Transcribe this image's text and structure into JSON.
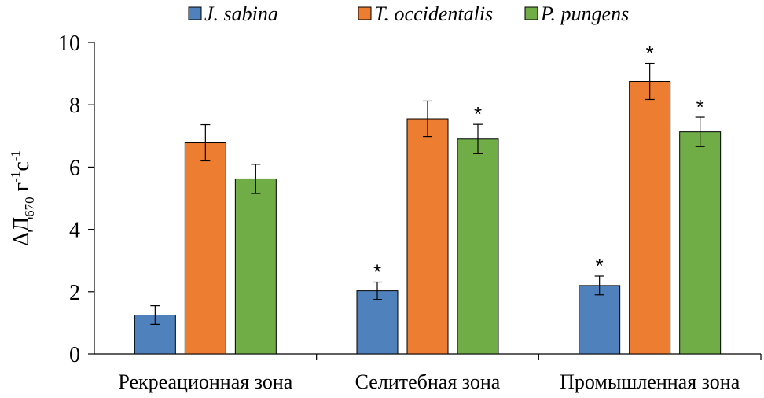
{
  "chart_data": {
    "type": "bar",
    "categories": [
      "Рекреационная зона",
      "Селитебная зона",
      "Промышленная зона"
    ],
    "series": [
      {
        "name": "J. sabina",
        "color": "#4f81bd",
        "values": [
          1.25,
          2.03,
          2.2
        ],
        "errors": [
          0.3,
          0.28,
          0.3
        ],
        "significance": [
          "",
          "*",
          "*"
        ]
      },
      {
        "name": "T. occidentalis",
        "color": "#ed7d31",
        "values": [
          6.78,
          7.55,
          8.75
        ],
        "errors": [
          0.58,
          0.57,
          0.58
        ],
        "significance": [
          "",
          "",
          "*"
        ]
      },
      {
        "name": "P. pungens",
        "color": "#70ad47",
        "values": [
          5.62,
          6.9,
          7.13
        ],
        "errors": [
          0.47,
          0.47,
          0.47
        ],
        "significance": [
          "",
          "*",
          "*"
        ]
      }
    ],
    "ylabel": {
      "main": "ΔД",
      "sub": "670",
      "unit1": " г",
      "sup1": "-1",
      "unit2": "с",
      "sup2": "-1"
    },
    "ylim": [
      0,
      10
    ],
    "yticks": [
      0,
      2,
      4,
      6,
      8,
      10
    ],
    "grid": false,
    "legend_position": "top"
  }
}
